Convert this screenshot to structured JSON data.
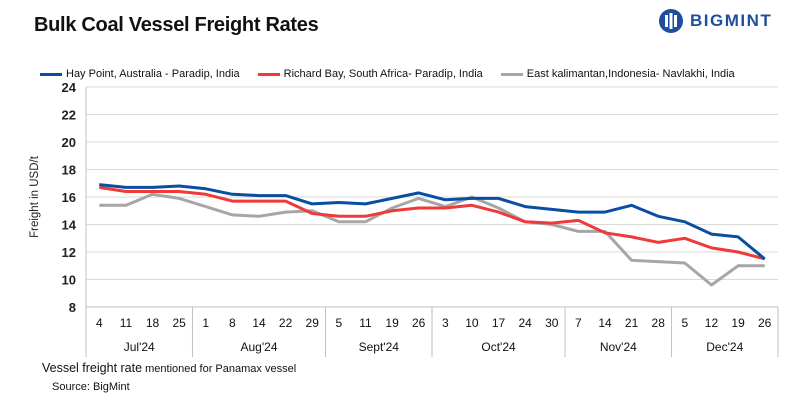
{
  "title": "Bulk Coal Vessel Freight Rates",
  "logo": {
    "text": "BIGMINT",
    "color": "#1d4f9c"
  },
  "footnote": {
    "main": "Vessel freight rate",
    "small": " mentioned for Panamax  vessel"
  },
  "source": "Source:  BigMint",
  "chart_data": {
    "type": "line",
    "title": "Bulk Coal Vessel Freight Rates",
    "ylabel": "Freight  in USD/t",
    "xlabel": "",
    "ylim": [
      8,
      24
    ],
    "yticks": [
      8,
      10,
      12,
      14,
      16,
      18,
      20,
      22,
      24
    ],
    "grid": true,
    "legend_position": "top",
    "x": [
      "4",
      "11",
      "18",
      "25",
      "1",
      "8",
      "14",
      "22",
      "29",
      "5",
      "11",
      "19",
      "26",
      "3",
      "10",
      "17",
      "24",
      "30",
      "7",
      "14",
      "21",
      "28",
      "5",
      "12",
      "19",
      "26"
    ],
    "months": [
      {
        "label": "Jul'24",
        "count": 4
      },
      {
        "label": "Aug'24",
        "count": 5
      },
      {
        "label": "Sept'24",
        "count": 4
      },
      {
        "label": "Oct'24",
        "count": 5
      },
      {
        "label": "Nov'24",
        "count": 4
      },
      {
        "label": "Dec'24",
        "count": 4
      }
    ],
    "series": [
      {
        "name": "Hay Point, Australia - Paradip, India",
        "color": "#0a4ea2",
        "values": [
          16.9,
          16.7,
          16.7,
          16.8,
          16.6,
          16.2,
          16.1,
          16.1,
          15.5,
          15.6,
          15.5,
          15.9,
          16.3,
          15.8,
          15.9,
          15.9,
          15.3,
          15.1,
          14.9,
          14.9,
          15.4,
          14.6,
          14.2,
          13.3,
          13.1,
          11.5
        ]
      },
      {
        "name": "Richard Bay, South Africa- Paradip, India",
        "color": "#ee3a38",
        "values": [
          16.7,
          16.4,
          16.4,
          16.4,
          16.2,
          15.7,
          15.7,
          15.7,
          14.8,
          14.6,
          14.6,
          15.0,
          15.2,
          15.2,
          15.4,
          14.9,
          14.2,
          14.1,
          14.3,
          13.4,
          13.1,
          12.7,
          13.0,
          12.3,
          12.0,
          11.5
        ]
      },
      {
        "name": "East kalimantan,Indonesia- Navlakhi, India",
        "color": "#a6a6a6",
        "values": [
          15.4,
          15.4,
          16.2,
          15.9,
          15.3,
          14.7,
          14.6,
          14.9,
          15.0,
          14.2,
          14.2,
          15.2,
          15.9,
          15.3,
          16.0,
          15.2,
          14.2,
          14.0,
          13.5,
          13.5,
          11.4,
          11.3,
          11.2,
          9.6,
          11.0,
          11.0
        ]
      }
    ]
  }
}
